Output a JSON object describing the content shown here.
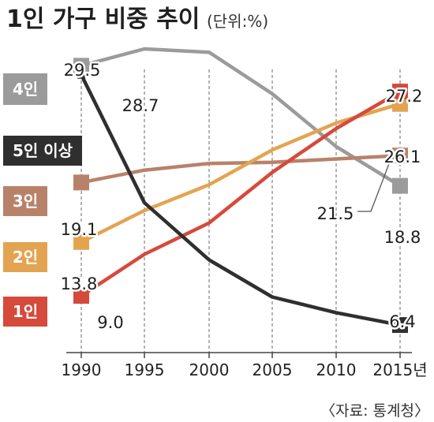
{
  "chart_data": {
    "type": "line",
    "title": "1인 가구 비중 추이",
    "unit": "(단위:%)",
    "source": "〈자료: 통계청〉",
    "x": [
      "1990",
      "1995",
      "2000",
      "2005",
      "2010",
      "2015년"
    ],
    "ylim": [
      5,
      31
    ],
    "grid": "vertical-dashed",
    "series": [
      {
        "name": "4인",
        "color": "#9b9b9b",
        "values": [
          29.5,
          31.0,
          30.7,
          27.0,
          22.3,
          18.8
        ]
      },
      {
        "name": "5인 이상",
        "color": "#2f2f2f",
        "values": [
          28.7,
          17.3,
          12.2,
          8.9,
          7.5,
          6.4
        ]
      },
      {
        "name": "3인",
        "color": "#b8826a",
        "values": [
          19.1,
          20.2,
          20.8,
          20.9,
          21.2,
          21.5
        ]
      },
      {
        "name": "2인",
        "color": "#e3a451",
        "values": [
          13.8,
          16.6,
          18.9,
          22.0,
          24.4,
          26.1
        ]
      },
      {
        "name": "1인",
        "color": "#d64a3b",
        "values": [
          9.0,
          12.7,
          15.5,
          20.0,
          23.9,
          27.2
        ]
      }
    ],
    "data_labels": [
      {
        "series": "4인",
        "index": 0,
        "text": "29.5"
      },
      {
        "series": "4인",
        "index": 5,
        "text": "18.8"
      },
      {
        "series": "5인 이상",
        "index": 0,
        "text": "28.7"
      },
      {
        "series": "5인 이상",
        "index": 5,
        "text": "6.4"
      },
      {
        "series": "3인",
        "index": 0,
        "text": "19.1"
      },
      {
        "series": "3인",
        "index": 5,
        "text": "21.5"
      },
      {
        "series": "2인",
        "index": 0,
        "text": "13.8"
      },
      {
        "series": "2인",
        "index": 5,
        "text": "26.1"
      },
      {
        "series": "1인",
        "index": 0,
        "text": "9.0"
      },
      {
        "series": "1인",
        "index": 5,
        "text": "27.2"
      }
    ]
  }
}
